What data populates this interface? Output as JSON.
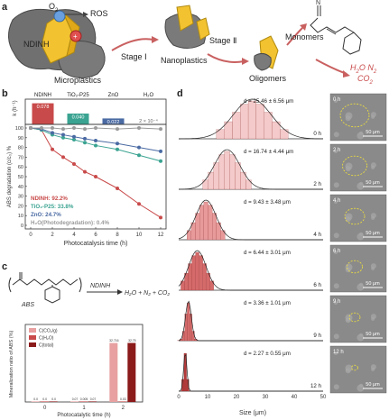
{
  "panels": {
    "a": "a",
    "b": "b",
    "c": "c",
    "d": "d"
  },
  "panel_a": {
    "o2": "O",
    "o2_sub": "2",
    "ros": "ROS",
    "ndinh": "NDINH",
    "microplastics": "Microplastics",
    "stage1": "Stage Ⅰ",
    "nanoplastics": "Nanoplastics",
    "stage2": "Stage Ⅱ",
    "oligomers": "Oligomers",
    "monomers": "Monomers",
    "h2o": "H",
    "h2o_sub": "2",
    "o_n": "O N",
    "n_sub": "2",
    "co": "CO",
    "co_sub": "2"
  },
  "panel_b": {
    "rate_label": "k (h⁻¹)",
    "rate_categories": [
      "NDINH",
      "TiO₂-P25",
      "ZnO",
      "H₂O"
    ],
    "rate_values": [
      0.078,
      0.04,
      0.022,
      0.0002
    ],
    "rate_value_labels": [
      "0.078",
      "0.040",
      "0.022",
      "2 × 10⁻⁴"
    ],
    "colors": {
      "ndinh": "#c94a4a",
      "tio2": "#3aa391",
      "zno": "#4a6aa3",
      "h2o": "#9b9b9b"
    },
    "ylabel": "ABS degradation (c/c₀) %",
    "xlabel": "Photocatalysis time (h)",
    "yticks": [
      "100",
      "90",
      "80",
      "70",
      "60",
      "50",
      "40",
      "30",
      "20",
      "10",
      "0"
    ],
    "xticks": [
      "0",
      "2",
      "4",
      "6",
      "8",
      "10",
      "12"
    ],
    "legend": [
      {
        "text": "NDINH: 92.2%"
      },
      {
        "text": "TiO₂-P25: 33.8%"
      },
      {
        "text": "ZnO: 24.7%"
      },
      {
        "text": "H₂O(Photodegradation): 0.4%"
      }
    ]
  },
  "chart_data": [
    {
      "type": "bar",
      "categories": [
        "NDINH",
        "TiO₂-P25",
        "ZnO",
        "H₂O"
      ],
      "values": [
        0.078,
        0.04,
        0.022,
        0.0002
      ],
      "ylabel": "k (h⁻¹)"
    },
    {
      "type": "line",
      "xlabel": "Photocatalysis time (h)",
      "ylabel": "ABS degradation (c/c₀) %",
      "x": [
        0,
        1,
        2,
        3,
        4,
        5,
        6,
        8,
        10,
        12
      ],
      "ylim": [
        0,
        100
      ],
      "xlim": [
        0,
        12
      ],
      "series": [
        {
          "name": "NDINH: 92.2%",
          "values": [
            100,
            98,
            78,
            70,
            63,
            55,
            50,
            38,
            22,
            8
          ]
        },
        {
          "name": "TiO₂-P25: 33.8%",
          "values": [
            100,
            98,
            93,
            90,
            88,
            85,
            82,
            78,
            72,
            66
          ]
        },
        {
          "name": "ZnO: 24.7%",
          "values": [
            100,
            99,
            95,
            93,
            91,
            89,
            87,
            84,
            80,
            76
          ]
        },
        {
          "name": "H₂O(Photodegradation): 0.4%",
          "values": [
            100,
            100,
            100,
            99,
            100,
            99,
            100,
            99,
            100,
            99
          ]
        }
      ]
    },
    {
      "type": "bar",
      "ylabel": "Mineralization ratio of ABS (%)",
      "xlabel": "Photocatalytic time (h)",
      "categories": [
        "0",
        "1",
        "2"
      ],
      "series": [
        {
          "name": "C(CO₂/g)",
          "values": [
            0.0,
            0.07,
            32.72
          ]
        },
        {
          "name": "C(H₂O)",
          "values": [
            0.0,
            0.0,
            0.03
          ]
        },
        {
          "name": "C(total)",
          "values": [
            0.0,
            0.07,
            32.75
          ]
        }
      ]
    },
    {
      "type": "bar",
      "xlabel": "Size (μm)",
      "xlim": [
        0,
        50
      ],
      "series": [
        {
          "name": "0 h",
          "d": "d = 25.46 ± 6.56 μm"
        },
        {
          "name": "2 h",
          "d": "d = 16.74 ± 4.44 μm"
        },
        {
          "name": "4 h",
          "d": "d = 9.43 ± 3.48 μm"
        },
        {
          "name": "6 h",
          "d": "d = 6.44 ± 3.01 μm"
        },
        {
          "name": "9 h",
          "d": "d = 3.36 ± 1.01 μm"
        },
        {
          "name": "12 h",
          "d": "d = 2.27 ± 0.55 μm"
        }
      ]
    }
  ],
  "panel_c": {
    "abs": "ABS",
    "ndinh": "NDINH",
    "products": "H₂O + N₂ + CO₂",
    "ylabel": "Mineralization ratio of ABS (%)",
    "xlabel": "Photocatalytic time (h)",
    "xticks": [
      "0",
      "1",
      "2"
    ],
    "legend": [
      "C(CO₂/g)",
      "C(H₂O)",
      "C(total)"
    ],
    "value_labels": [
      "0.0",
      "0.0",
      "0.0",
      "0.07",
      "0.005",
      "0.07",
      "32.716",
      "0.03",
      "32.75"
    ],
    "colors": [
      "#e8a0a0",
      "#c94a4a",
      "#8b1a1a"
    ]
  },
  "panel_d": {
    "rows": [
      {
        "d": "d = 25.46 ± 6.56 μm",
        "time": "0 h",
        "mean": 25.46,
        "sd": 6.56
      },
      {
        "d": "d = 16.74 ± 4.44 μm",
        "time": "2 h",
        "mean": 16.74,
        "sd": 4.44
      },
      {
        "d": "d = 9.43 ± 3.48 μm",
        "time": "4 h",
        "mean": 9.43,
        "sd": 3.48
      },
      {
        "d": "d = 6.44 ± 3.01 μm",
        "time": "6 h",
        "mean": 6.44,
        "sd": 3.01
      },
      {
        "d": "d = 3.36 ± 1.01 μm",
        "time": "9 h",
        "mean": 3.36,
        "sd": 1.01
      },
      {
        "d": "d = 2.27 ± 0.55 μm",
        "time": "12 h",
        "mean": 2.27,
        "sd": 0.55
      }
    ],
    "xticks": [
      "0",
      "10",
      "20",
      "30",
      "40",
      "50"
    ],
    "xlabel": "Size (μm)",
    "scale": "50 μm",
    "sem_times": [
      "0 h",
      "2 h",
      "4 h",
      "6 h",
      "9 h",
      "12 h"
    ]
  }
}
